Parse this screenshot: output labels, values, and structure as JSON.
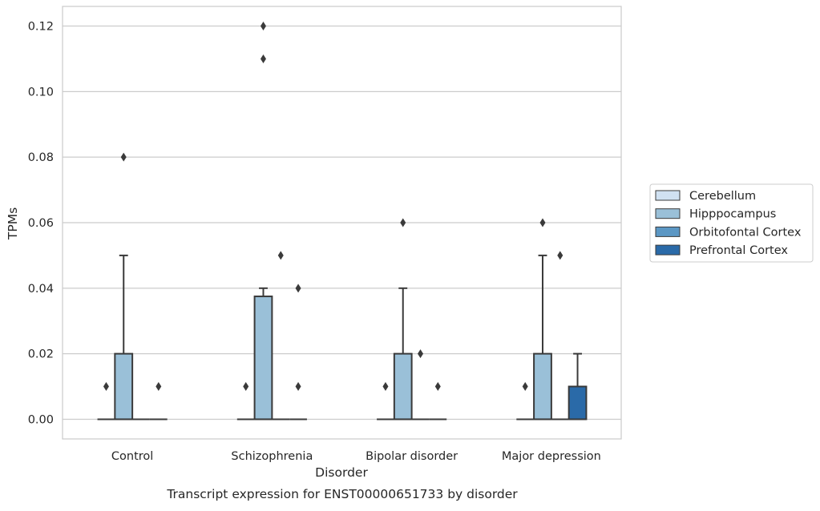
{
  "chart_data": {
    "type": "box",
    "title": "",
    "caption": "Transcript expression for ENST00000651733 by disorder",
    "xlabel": "Disorder",
    "ylabel": "TPMs",
    "categories": [
      "Control",
      "Schizophrenia",
      "Bipolar disorder",
      "Major depression"
    ],
    "yticks": [
      "0.00",
      "0.02",
      "0.04",
      "0.06",
      "0.08",
      "0.10",
      "0.12"
    ],
    "ylim": [
      -0.006,
      0.126
    ],
    "grid": "horizontal",
    "legend_position": "right",
    "series": [
      {
        "name": "Cerebellum",
        "color": "#d0e1f2",
        "boxes": [
          {
            "q1": 0,
            "median": 0,
            "q3": 0,
            "whisker_low": 0,
            "whisker_high": 0,
            "outliers": [
              0.01
            ]
          },
          {
            "q1": 0,
            "median": 0,
            "q3": 0,
            "whisker_low": 0,
            "whisker_high": 0,
            "outliers": [
              0.01
            ]
          },
          {
            "q1": 0,
            "median": 0,
            "q3": 0,
            "whisker_low": 0,
            "whisker_high": 0,
            "outliers": [
              0.01
            ]
          },
          {
            "q1": 0,
            "median": 0,
            "q3": 0,
            "whisker_low": 0,
            "whisker_high": 0,
            "outliers": [
              0.01
            ]
          }
        ]
      },
      {
        "name": "Hipppocampus",
        "color": "#9ac0d8",
        "boxes": [
          {
            "q1": 0,
            "median": 0,
            "q3": 0.02,
            "whisker_low": 0,
            "whisker_high": 0.05,
            "outliers": [
              0.08
            ]
          },
          {
            "q1": 0,
            "median": 0,
            "q3": 0.0375,
            "whisker_low": 0,
            "whisker_high": 0.04,
            "outliers": [
              0.11,
              0.12
            ]
          },
          {
            "q1": 0,
            "median": 0,
            "q3": 0.02,
            "whisker_low": 0,
            "whisker_high": 0.04,
            "outliers": [
              0.06
            ]
          },
          {
            "q1": 0,
            "median": 0,
            "q3": 0.02,
            "whisker_low": 0,
            "whisker_high": 0.05,
            "outliers": [
              0.06
            ]
          }
        ]
      },
      {
        "name": "Orbitofontal Cortex",
        "color": "#5b97c4",
        "boxes": [
          {
            "q1": 0,
            "median": 0,
            "q3": 0,
            "whisker_low": 0,
            "whisker_high": 0,
            "outliers": []
          },
          {
            "q1": 0,
            "median": 0,
            "q3": 0,
            "whisker_low": 0,
            "whisker_high": 0,
            "outliers": [
              0.05
            ]
          },
          {
            "q1": 0,
            "median": 0,
            "q3": 0,
            "whisker_low": 0,
            "whisker_high": 0,
            "outliers": [
              0.02
            ]
          },
          {
            "q1": 0,
            "median": 0,
            "q3": 0,
            "whisker_low": 0,
            "whisker_high": 0,
            "outliers": [
              0.05
            ]
          }
        ]
      },
      {
        "name": "Prefrontal Cortex",
        "color": "#2a6aa8",
        "boxes": [
          {
            "q1": 0,
            "median": 0,
            "q3": 0,
            "whisker_low": 0,
            "whisker_high": 0,
            "outliers": [
              0.01
            ]
          },
          {
            "q1": 0,
            "median": 0,
            "q3": 0,
            "whisker_low": 0,
            "whisker_high": 0,
            "outliers": [
              0.01,
              0.04
            ]
          },
          {
            "q1": 0,
            "median": 0,
            "q3": 0,
            "whisker_low": 0,
            "whisker_high": 0,
            "outliers": [
              0.01
            ]
          },
          {
            "q1": 0,
            "median": 0,
            "q3": 0.01,
            "whisker_low": 0,
            "whisker_high": 0.02,
            "outliers": []
          }
        ]
      }
    ]
  }
}
